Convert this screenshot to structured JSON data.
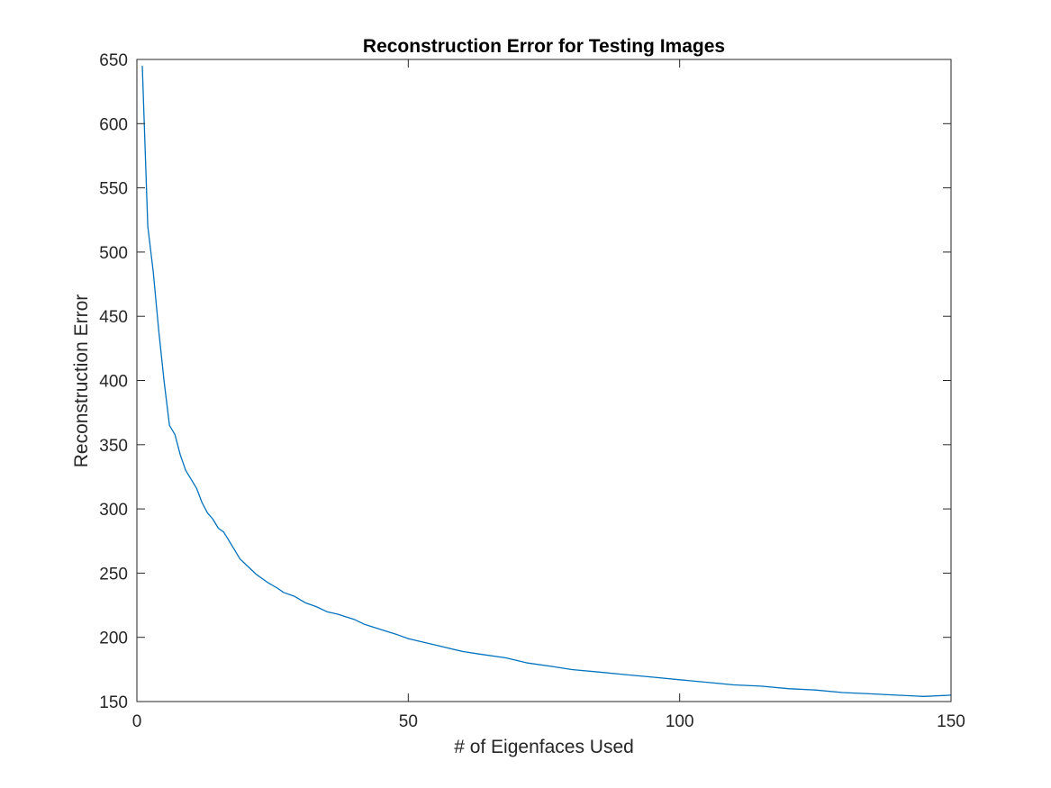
{
  "chart_data": {
    "type": "line",
    "title": "Reconstruction Error for Testing Images",
    "xlabel": "# of Eigenfaces Used",
    "ylabel": "Reconstruction Error",
    "xlim": [
      0,
      150
    ],
    "ylim": [
      150,
      650
    ],
    "xticks": [
      0,
      50,
      100,
      150
    ],
    "yticks": [
      150,
      200,
      250,
      300,
      350,
      400,
      450,
      500,
      550,
      600,
      650
    ],
    "grid": false,
    "line_color": "#0072BD",
    "series": [
      {
        "x": [
          1,
          2,
          3,
          4,
          5,
          6,
          7,
          8,
          9,
          10,
          11,
          12,
          13,
          14,
          15,
          16,
          17,
          18,
          19,
          20,
          22,
          24,
          26,
          27,
          29,
          31,
          33,
          35,
          37,
          40,
          42,
          45,
          48,
          50,
          52,
          55,
          60,
          63,
          68,
          72,
          77,
          80,
          85,
          90,
          95,
          100,
          105,
          110,
          115,
          120,
          125,
          130,
          135,
          140,
          145,
          150
        ],
        "y": [
          645,
          520,
          485,
          440,
          400,
          365,
          358,
          342,
          330,
          323,
          316,
          305,
          297,
          292,
          285,
          282,
          275,
          268,
          261,
          257,
          249,
          243,
          238,
          235,
          232,
          227,
          224,
          220,
          218,
          214,
          210,
          206,
          202,
          199,
          197,
          194,
          189,
          187,
          184,
          180,
          177,
          175,
          173,
          171,
          169,
          167,
          165,
          163,
          162,
          160,
          159,
          157,
          156,
          155,
          154,
          155
        ]
      }
    ]
  }
}
